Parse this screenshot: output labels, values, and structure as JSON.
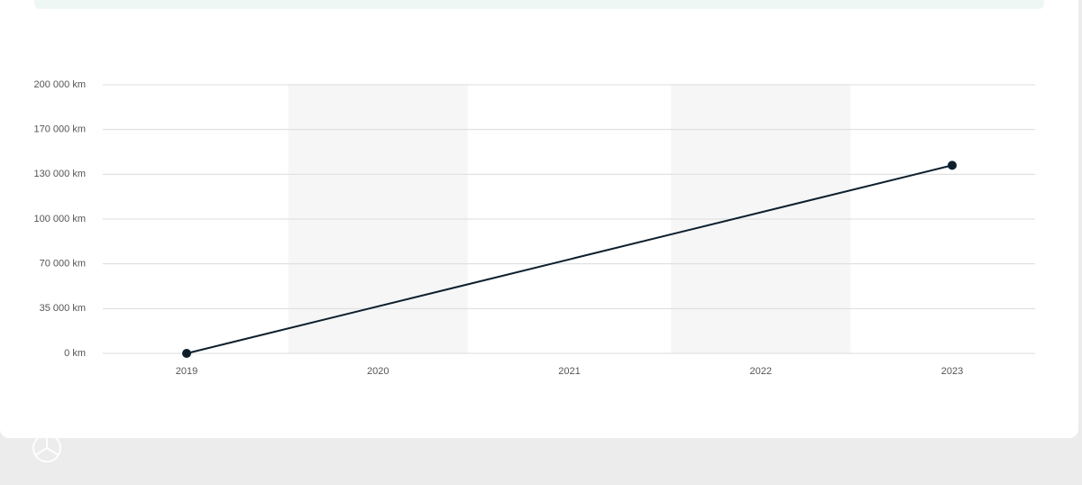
{
  "chart_data": {
    "type": "line",
    "categories": [
      "2019",
      "2020",
      "2021",
      "2022",
      "2023"
    ],
    "series": [
      {
        "color": "#0d1f2d",
        "x": [
          "2019",
          "2023"
        ],
        "values": [
          0,
          138000
        ]
      }
    ],
    "ylim": [
      0,
      200000
    ],
    "yticks": [
      {
        "value": 0,
        "label": "0 km"
      },
      {
        "value": 35000,
        "label": "35 000 km"
      },
      {
        "value": 70000,
        "label": "70 000 km"
      },
      {
        "value": 100000,
        "label": "100 000 km"
      },
      {
        "value": 130000,
        "label": "130 000 km"
      },
      {
        "value": 170000,
        "label": "170 000 km"
      },
      {
        "value": 200000,
        "label": "200 000 km"
      }
    ],
    "grid": true
  }
}
